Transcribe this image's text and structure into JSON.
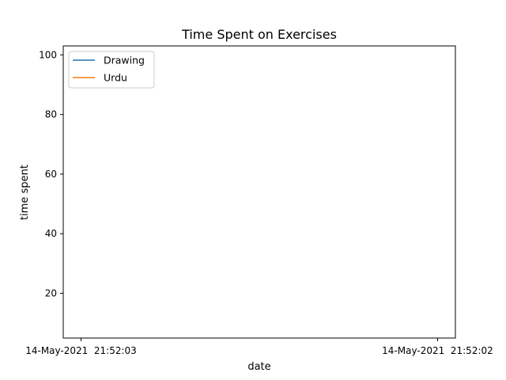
{
  "chart_data": {
    "type": "line",
    "title": "Time Spent on Exercises",
    "xlabel": "date",
    "ylabel": "time spent",
    "x_ticks": [
      "14-May-2021  21:52:03",
      "14-May-2021  21:52:02"
    ],
    "y_ticks": [
      20,
      40,
      60,
      80,
      100
    ],
    "ylim": [
      5,
      103
    ],
    "grid": false,
    "legend_position": "top-left",
    "series": [
      {
        "name": "Drawing",
        "color": "#1f77b4",
        "values": []
      },
      {
        "name": "Urdu",
        "color": "#ff7f0e",
        "values": []
      }
    ]
  }
}
